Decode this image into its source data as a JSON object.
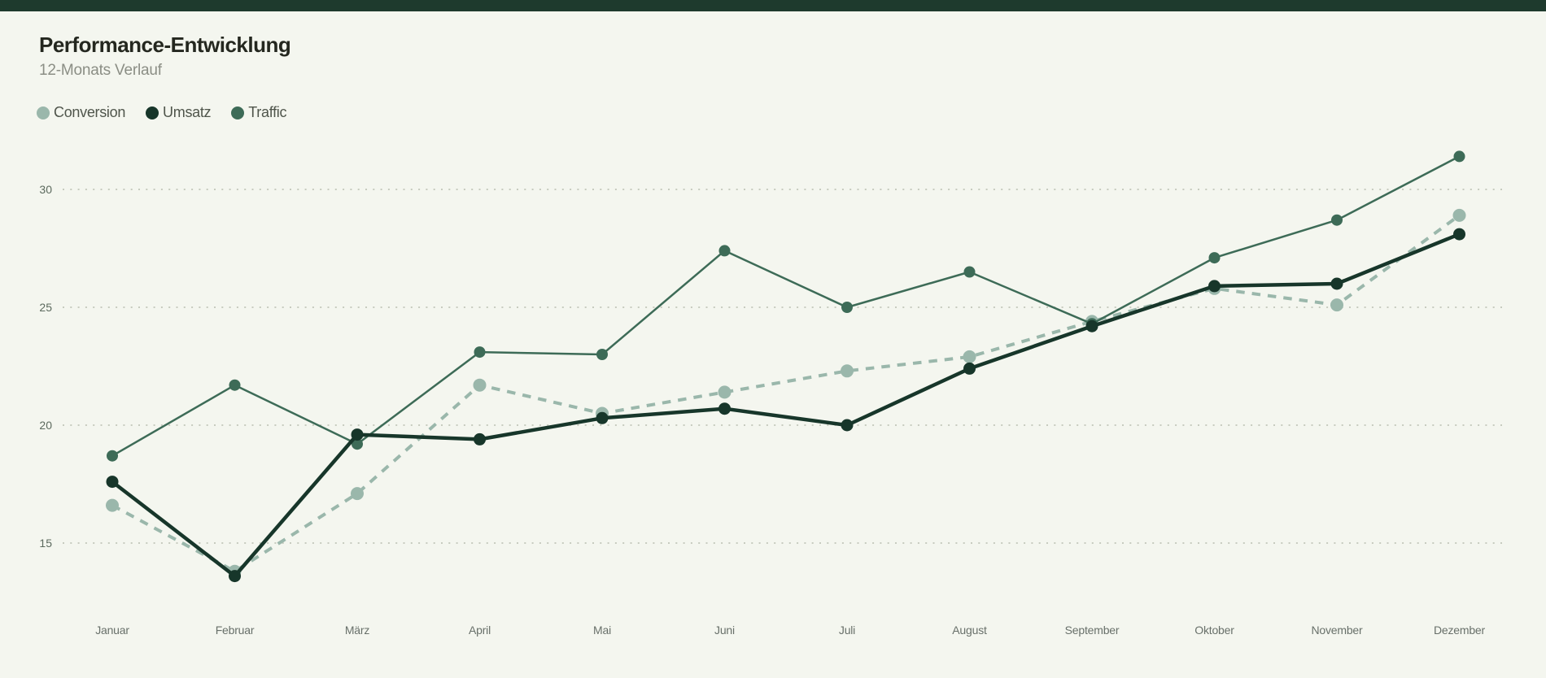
{
  "page": {
    "background_color": "#f4f6ef",
    "accent_bar_color": "#1e3a2d"
  },
  "chart_data": {
    "type": "line",
    "title": "Performance-Entwicklung",
    "subtitle": "12-Monats Verlauf",
    "xlabel": "",
    "ylabel": "",
    "categories": [
      "Januar",
      "Februar",
      "März",
      "April",
      "Mai",
      "Juni",
      "Juli",
      "August",
      "September",
      "Oktober",
      "November",
      "Dezember"
    ],
    "series": [
      {
        "name": "Conversion",
        "color": "#9ab7ab",
        "line_style": "dashed",
        "line_width": 4,
        "marker_radius": 8,
        "values": [
          16.6,
          13.8,
          17.1,
          21.7,
          20.5,
          21.4,
          22.3,
          22.9,
          24.4,
          25.8,
          25.1,
          28.9
        ]
      },
      {
        "name": "Umsatz",
        "color": "#17362a",
        "line_style": "solid",
        "line_width": 4.5,
        "marker_radius": 7.5,
        "values": [
          17.6,
          13.6,
          19.6,
          19.4,
          20.3,
          20.7,
          20.0,
          22.4,
          24.2,
          25.9,
          26.0,
          28.1
        ]
      },
      {
        "name": "Traffic",
        "color": "#3d6b57",
        "line_style": "solid",
        "line_width": 2.5,
        "marker_radius": 7,
        "values": [
          18.7,
          21.7,
          19.2,
          23.1,
          23.0,
          27.4,
          25.0,
          26.5,
          24.3,
          27.1,
          28.7,
          31.4
        ]
      }
    ],
    "y_ticks": [
      30,
      25,
      20,
      15
    ],
    "ylim": [
      12.5,
      33
    ],
    "grid": "horizontal dotted",
    "grid_color": "#c7cbbf",
    "legend_position": "top-left"
  }
}
